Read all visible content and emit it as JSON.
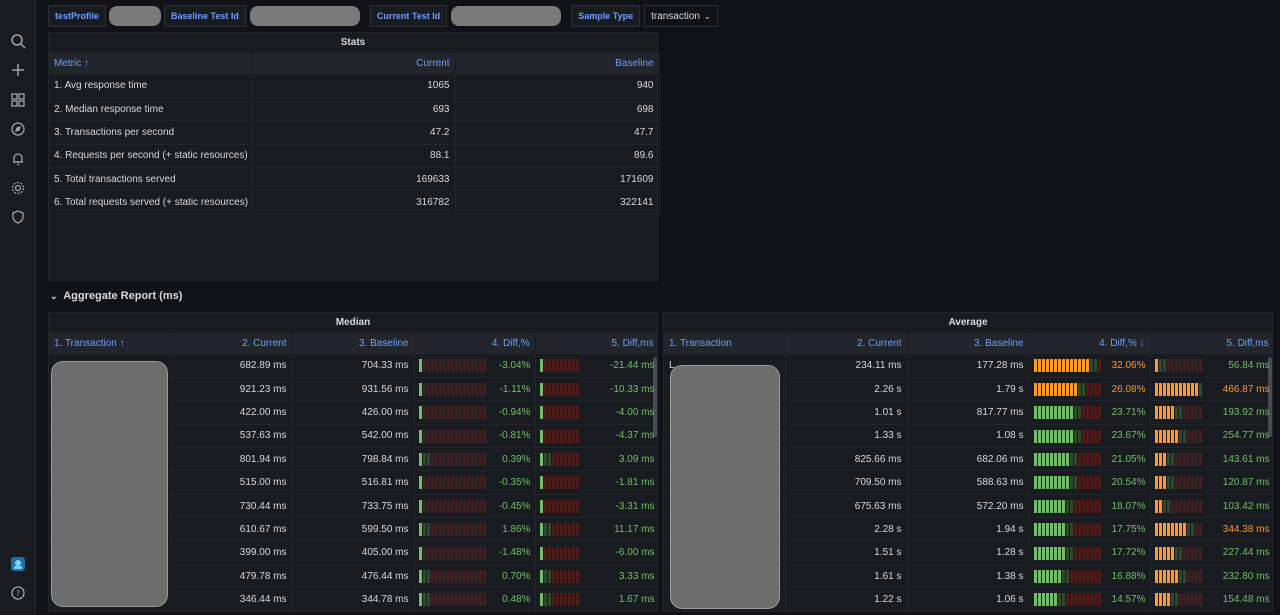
{
  "variables": {
    "profile_label": "testProfile",
    "baseline_label": "Baseline Test Id",
    "current_label": "Current Test Id",
    "sample_type_label": "Sample Type",
    "sample_type_value": "transaction"
  },
  "stats": {
    "title": "Stats",
    "headers": [
      "Metric ↑",
      "Current",
      "Baseline"
    ],
    "rows": [
      [
        "1. Avg response time",
        "1065",
        "940"
      ],
      [
        "2. Median response time",
        "693",
        "698"
      ],
      [
        "3. Transactions per second",
        "47.2",
        "47.7"
      ],
      [
        "4. Requests per second (+ static resources)",
        "88.1",
        "89.6"
      ],
      [
        "5. Total transactions served",
        "169633",
        "171609"
      ],
      [
        "6. Total requests served (+ static resources)",
        "316782",
        "322141"
      ]
    ]
  },
  "aggregate": {
    "title": "Aggregate Report (ms)"
  },
  "median": {
    "title": "Median",
    "headers": [
      "1. Transaction ↑",
      "2. Current",
      "3. Baseline",
      "4. Diff,%",
      "5. Diff,ms"
    ],
    "rows": [
      [
        "",
        "682.89 ms",
        "704.33 ms",
        "-3.04%",
        "-21.44 ms"
      ],
      [
        "",
        "921.23 ms",
        "931.56 ms",
        "-1.11%",
        "-10.33 ms"
      ],
      [
        "",
        "422.00 ms",
        "426.00 ms",
        "-0.94%",
        "-4.00 ms"
      ],
      [
        "",
        "537.63 ms",
        "542.00 ms",
        "-0.81%",
        "-4.37 ms"
      ],
      [
        "",
        "801.94 ms",
        "798.84 ms",
        "0.39%",
        "3.09 ms"
      ],
      [
        "",
        "515.00 ms",
        "516.81 ms",
        "-0.35%",
        "-1.81 ms"
      ],
      [
        "",
        "730.44 ms",
        "733.75 ms",
        "-0.45%",
        "-3.31 ms"
      ],
      [
        "",
        "610.67 ms",
        "599.50 ms",
        "1.86%",
        "11.17 ms"
      ],
      [
        "",
        "399.00 ms",
        "405.00 ms",
        "-1.48%",
        "-6.00 ms"
      ],
      [
        "",
        "479.78 ms",
        "476.44 ms",
        "0.70%",
        "3.33 ms"
      ],
      [
        "",
        "346.44 ms",
        "344.78 ms",
        "0.48%",
        "1.67 ms"
      ]
    ]
  },
  "average": {
    "title": "Average",
    "headers": [
      "1. Transaction",
      "2. Current",
      "3. Baseline",
      "4. Diff,% ↓",
      "5. Diff,ms"
    ],
    "rows": [
      [
        "L",
        "234.11 ms",
        "177.28 ms",
        "32.06%",
        "56.84 ms"
      ],
      [
        "",
        "2.26 s",
        "1.79 s",
        "26.08%",
        "466.87 ms"
      ],
      [
        "",
        "1.01 s",
        "817.77 ms",
        "23.71%",
        "193.92 ms"
      ],
      [
        "",
        "1.33 s",
        "1.08 s",
        "23.67%",
        "254.77 ms"
      ],
      [
        "",
        "825.66 ms",
        "682.06 ms",
        "21.05%",
        "143.61 ms"
      ],
      [
        "",
        "709.50 ms",
        "588.63 ms",
        "20.54%",
        "120.87 ms"
      ],
      [
        "",
        "675.63 ms",
        "572.20 ms",
        "18.07%",
        "103.42 ms"
      ],
      [
        "",
        "2.28 s",
        "1.94 s",
        "17.75%",
        "344.38 ms"
      ],
      [
        "",
        "1.51 s",
        "1.28 s",
        "17.72%",
        "227.44 ms"
      ],
      [
        "",
        "1.61 s",
        "1.38 s",
        "16.88%",
        "232.80 ms"
      ],
      [
        "",
        "1.22 s",
        "1.06 s",
        "14.57%",
        "154.48 ms"
      ]
    ]
  },
  "colors": {
    "accent": "#6e9fff",
    "good": "#73bf69",
    "warn": "#ff9830"
  }
}
